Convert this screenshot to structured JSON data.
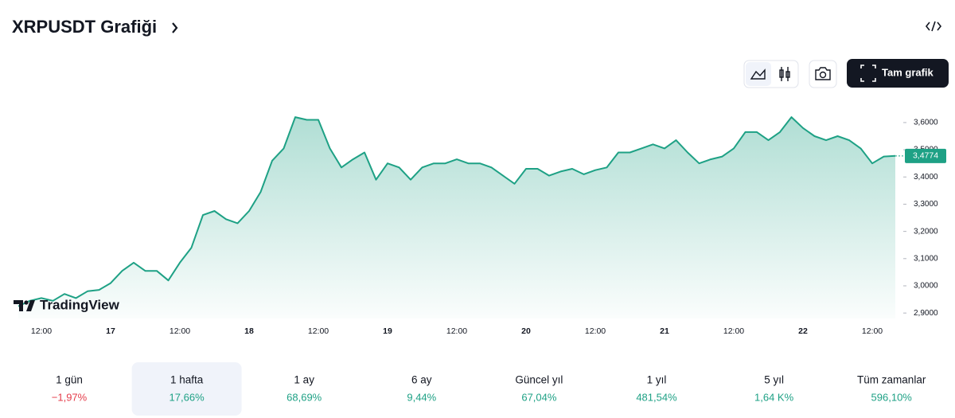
{
  "header": {
    "title": "XRPUSDT Grafiği",
    "button": "Tam grafik",
    "watermark": "TradingView"
  },
  "chart_data": {
    "type": "area",
    "categories": [
      null,
      null,
      "12:00",
      null,
      null,
      null,
      null,
      null,
      "17",
      null,
      null,
      null,
      null,
      null,
      "12:00",
      null,
      null,
      null,
      null,
      null,
      "18",
      null,
      null,
      null,
      null,
      null,
      "12:00",
      null,
      null,
      null,
      null,
      null,
      "19",
      null,
      null,
      null,
      null,
      null,
      "12:00",
      null,
      null,
      null,
      null,
      null,
      "20",
      null,
      null,
      null,
      null,
      null,
      "12:00",
      null,
      null,
      null,
      null,
      null,
      "21",
      null,
      null,
      null,
      null,
      null,
      "12:00",
      null,
      null,
      null,
      null,
      null,
      "22",
      null,
      null,
      null,
      null,
      null,
      "12:00",
      null,
      null
    ],
    "values": [
      2.925,
      2.945,
      2.955,
      2.945,
      2.97,
      2.955,
      2.98,
      2.985,
      3.01,
      3.055,
      3.085,
      3.055,
      3.055,
      3.02,
      3.085,
      3.14,
      3.26,
      3.275,
      3.245,
      3.23,
      3.275,
      3.345,
      3.46,
      3.505,
      3.62,
      3.61,
      3.61,
      3.505,
      3.435,
      3.465,
      3.49,
      3.39,
      3.45,
      3.435,
      3.39,
      3.435,
      3.45,
      3.45,
      3.465,
      3.45,
      3.45,
      3.435,
      3.405,
      3.375,
      3.43,
      3.43,
      3.405,
      3.42,
      3.43,
      3.41,
      3.425,
      3.435,
      3.49,
      3.49,
      3.505,
      3.52,
      3.505,
      3.535,
      3.49,
      3.45,
      3.465,
      3.475,
      3.505,
      3.565,
      3.565,
      3.535,
      3.565,
      3.62,
      3.58,
      3.55,
      3.535,
      3.55,
      3.535,
      3.505,
      3.45,
      3.475,
      3.4774
    ],
    "last_label": "3,4774",
    "color": "#1ea185",
    "ylim": [
      2.88,
      3.67
    ],
    "yticks": [
      {
        "value": 2.9,
        "label": "2,9000"
      },
      {
        "value": 3.0,
        "label": "3,0000"
      },
      {
        "value": 3.1,
        "label": "3,1000"
      },
      {
        "value": 3.2,
        "label": "3,2000"
      },
      {
        "value": 3.3,
        "label": "3,3000"
      },
      {
        "value": 3.4,
        "label": "3,4000"
      },
      {
        "value": 3.5,
        "label": "3,5000"
      },
      {
        "value": 3.6,
        "label": "3,6000"
      }
    ]
  },
  "performance": {
    "selected": 1,
    "items": [
      {
        "period": "1 gün",
        "change": "−1,97%",
        "color": "#e53d4b"
      },
      {
        "period": "1 hafta",
        "change": "17,66%",
        "color": "#1ea185"
      },
      {
        "period": "1 ay",
        "change": "68,69%",
        "color": "#1ea185"
      },
      {
        "period": "6 ay",
        "change": "9,44%",
        "color": "#1ea185"
      },
      {
        "period": "Güncel yıl",
        "change": "67,04%",
        "color": "#1ea185"
      },
      {
        "period": "1 yıl",
        "change": "481,54%",
        "color": "#1ea185"
      },
      {
        "period": "5 yıl",
        "change": "1,64 K%",
        "color": "#1ea185"
      },
      {
        "period": "Tüm zamanlar",
        "change": "596,10%",
        "color": "#1ea185"
      }
    ]
  }
}
